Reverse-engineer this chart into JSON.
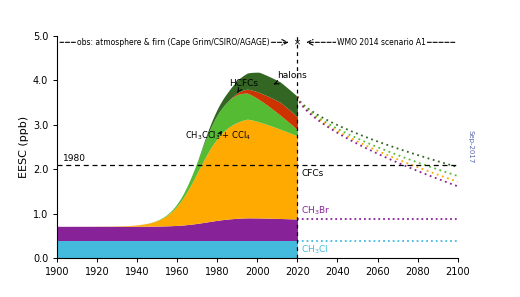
{
  "title": "",
  "ylabel": "EESC (ppb)",
  "xlim": [
    1900,
    2100
  ],
  "ylim": [
    0.0,
    5.0
  ],
  "yticks": [
    0.0,
    1.0,
    2.0,
    3.0,
    4.0,
    5.0
  ],
  "xticks": [
    1900,
    1920,
    1940,
    1960,
    1980,
    2000,
    2020,
    2040,
    2060,
    2080,
    2100
  ],
  "year_split": 2020,
  "year_1980_level": 2.1,
  "colors": {
    "CH3Cl": "#44bbdd",
    "CH3Br": "#882299",
    "CFCs": "#ffaa00",
    "CH3CCl3_CCl4": "#55bb33",
    "HCFCs": "#cc3300",
    "halons": "#336622",
    "future_halons": "#336622",
    "future_HCFCs": "#55bb33",
    "future_CH3Br": "#882299",
    "future_CFCs": "#ffaa00"
  },
  "bg_color": "#ffffff"
}
